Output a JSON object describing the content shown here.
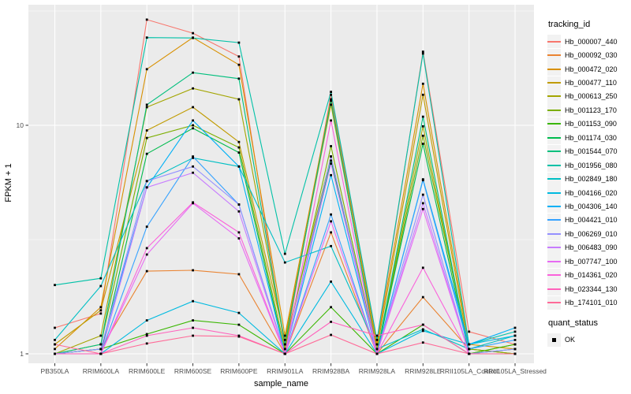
{
  "figure": {
    "background": "#FFFFFF",
    "panel_background": "#EBEBEB",
    "grid_color": "#FFFFFF",
    "tick_label_color": "#4D4D4D",
    "tick_mark_color": "#333333",
    "title_color": "#000000",
    "point_color": "#000000",
    "legend_key_background": "#F2F2F2"
  },
  "axes": {
    "x_title": "sample_name",
    "y_title": "FPKM + 1",
    "y_tick_labels": [
      "1",
      "10"
    ],
    "y_tick_values": [
      1,
      10
    ]
  },
  "legend": {
    "tracking_title": "tracking_id",
    "quant_title": "quant_status",
    "quant_label": "OK"
  },
  "chart_data": {
    "type": "line",
    "title": "",
    "xlabel": "sample_name",
    "ylabel": "FPKM + 1",
    "y_scale": "log10",
    "ylim": [
      0.91,
      34
    ],
    "y_major_gridlines": [
      1,
      10
    ],
    "y_minor_gridlines": [
      3.162,
      31.62
    ],
    "grid": true,
    "legend_position": "right",
    "marker": "black-square (quant_status OK)",
    "categories": [
      "PB350LA",
      "RRIM600LA",
      "RRIM600LE",
      "RRIM600SE",
      "RRIM600PE",
      "RRIM901LA",
      "RRIM928BA",
      "RRIM928LA",
      "RRIM928LE",
      "RRII105LA_Control",
      "RRII105LA_Stressed"
    ],
    "series": [
      {
        "name": "Hb_000007_440",
        "color": "#F8766D",
        "values": [
          1.3,
          1.5,
          29.0,
          25.3,
          20.0,
          1.05,
          13.6,
          1.1,
          21.0,
          1.25,
          1.1
        ]
      },
      {
        "name": "Hb_000092_030",
        "color": "#EA8331",
        "values": [
          1.0,
          1.05,
          2.3,
          2.32,
          2.23,
          1.0,
          3.4,
          1.0,
          1.77,
          1.05,
          1.0
        ]
      },
      {
        "name": "Hb_000472_020",
        "color": "#D89000",
        "values": [
          1.05,
          1.6,
          17.6,
          24.2,
          18.4,
          1.2,
          13.0,
          1.1,
          15.2,
          1.1,
          1.05
        ]
      },
      {
        "name": "Hb_000477_110",
        "color": "#C09B00",
        "values": [
          1.1,
          1.55,
          9.5,
          12.0,
          8.45,
          1.15,
          12.3,
          1.05,
          13.6,
          1.05,
          1.0
        ]
      },
      {
        "name": "Hb_000613_250",
        "color": "#A3A500",
        "values": [
          1.0,
          1.2,
          12.0,
          14.5,
          13.0,
          1.1,
          7.3,
          1.0,
          9.9,
          1.0,
          1.1
        ]
      },
      {
        "name": "Hb_001123_170",
        "color": "#7CAE00",
        "values": [
          1.0,
          1.1,
          8.8,
          10.0,
          8.0,
          1.05,
          8.1,
          1.0,
          9.0,
          1.05,
          1.0
        ]
      },
      {
        "name": "Hb_001153_090",
        "color": "#39B600",
        "values": [
          1.0,
          1.05,
          1.22,
          1.4,
          1.34,
          1.0,
          1.6,
          1.0,
          1.34,
          1.0,
          1.1
        ]
      },
      {
        "name": "Hb_001174_030",
        "color": "#00BB4E",
        "values": [
          1.0,
          1.0,
          7.5,
          9.7,
          7.6,
          1.0,
          7.0,
          1.0,
          8.3,
          1.0,
          1.05
        ]
      },
      {
        "name": "Hb_001544_070",
        "color": "#00BF7D",
        "values": [
          1.0,
          1.1,
          12.3,
          17.0,
          16.0,
          1.1,
          12.8,
          1.0,
          10.9,
          1.0,
          1.0
        ]
      },
      {
        "name": "Hb_001956_080",
        "color": "#00C1A7",
        "values": [
          2.0,
          2.14,
          24.2,
          24.1,
          23.0,
          2.74,
          14.0,
          1.15,
          20.6,
          1.1,
          1.25
        ]
      },
      {
        "name": "Hb_002849_180",
        "color": "#00BFC4",
        "values": [
          1.15,
          1.98,
          5.7,
          7.2,
          6.6,
          2.51,
          2.96,
          1.05,
          1.28,
          1.05,
          1.2
        ]
      },
      {
        "name": "Hb_004166_020",
        "color": "#00BAE0",
        "values": [
          1.0,
          1.0,
          1.4,
          1.7,
          1.51,
          1.0,
          2.07,
          1.0,
          1.26,
          1.1,
          1.2
        ]
      },
      {
        "name": "Hb_004306_140",
        "color": "#00B0F6",
        "values": [
          1.0,
          1.05,
          5.35,
          10.5,
          6.6,
          1.0,
          6.05,
          1.0,
          5.8,
          1.1,
          1.3
        ]
      },
      {
        "name": "Hb_004421_010",
        "color": "#35A2FF",
        "values": [
          1.0,
          1.0,
          3.6,
          7.3,
          4.5,
          1.0,
          4.07,
          1.0,
          5.75,
          1.05,
          1.15
        ]
      },
      {
        "name": "Hb_006269_010",
        "color": "#9590FF",
        "values": [
          1.0,
          1.05,
          5.7,
          6.6,
          4.5,
          1.0,
          7.3,
          1.0,
          4.97,
          1.0,
          1.05
        ]
      },
      {
        "name": "Hb_006483_090",
        "color": "#C77CFF",
        "values": [
          1.0,
          1.0,
          5.35,
          6.2,
          4.2,
          1.0,
          6.8,
          1.0,
          4.56,
          1.0,
          1.0
        ]
      },
      {
        "name": "Hb_007747_100",
        "color": "#E76BF3",
        "values": [
          1.0,
          1.0,
          2.72,
          4.56,
          3.2,
          1.0,
          3.8,
          1.0,
          4.3,
          1.0,
          1.0
        ]
      },
      {
        "name": "Hb_014361_020",
        "color": "#FA62DB",
        "values": [
          1.0,
          1.0,
          2.9,
          4.6,
          3.4,
          1.0,
          10.5,
          1.0,
          2.38,
          1.0,
          1.0
        ]
      },
      {
        "name": "Hb_023344_130",
        "color": "#FF62BC",
        "values": [
          1.0,
          1.0,
          1.2,
          1.3,
          1.2,
          1.0,
          1.38,
          1.2,
          1.34,
          1.0,
          1.0
        ]
      },
      {
        "name": "Hb_174101_010",
        "color": "#FF6A98",
        "values": [
          1.1,
          1.0,
          1.11,
          1.2,
          1.19,
          1.0,
          1.21,
          1.0,
          1.12,
          1.0,
          1.0
        ]
      }
    ]
  }
}
